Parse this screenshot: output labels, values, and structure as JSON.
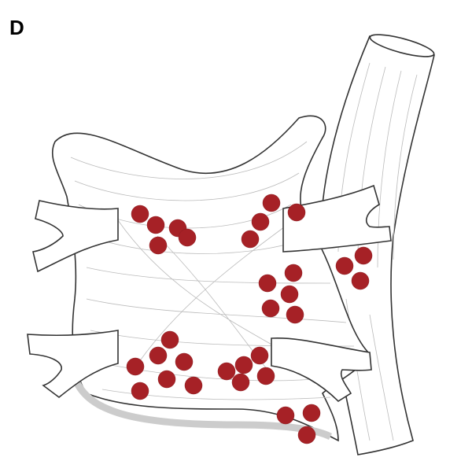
{
  "panel_label": "D"
}
